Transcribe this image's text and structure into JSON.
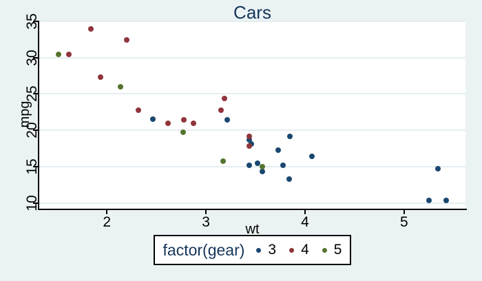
{
  "chart": {
    "title": "Cars",
    "xlabel": "wt",
    "ylabel": "mpg",
    "legend_title": "factor(gear)"
  },
  "colors": {
    "background": "#eaf2f3",
    "panel": "#ffffff",
    "grid": "#e4edf1",
    "axis": "#000000",
    "title_text": "#16365c",
    "gear3": "#1a476f",
    "gear4": "#90353b",
    "gear5": "#55752f"
  },
  "chart_data": {
    "type": "scatter",
    "title": "Cars",
    "xlabel": "wt",
    "ylabel": "mpg",
    "xlim": [
      1.317,
      5.62
    ],
    "ylim": [
      9.225,
      35.08
    ],
    "xticks": [
      2,
      3,
      4,
      5
    ],
    "yticks": [
      10,
      15,
      20,
      25,
      30,
      35
    ],
    "grid": "horizontal-only",
    "legend": {
      "title": "factor(gear)",
      "position": "bottom",
      "entries": [
        "3",
        "4",
        "5"
      ]
    },
    "series": [
      {
        "name": "3",
        "color": "#1a476f",
        "points": [
          [
            2.465,
            21.5
          ],
          [
            3.215,
            21.4
          ],
          [
            3.435,
            15.2
          ],
          [
            3.44,
            18.7
          ],
          [
            3.46,
            18.1
          ],
          [
            3.52,
            15.5
          ],
          [
            3.57,
            14.3
          ],
          [
            3.73,
            17.3
          ],
          [
            3.78,
            15.2
          ],
          [
            3.84,
            13.3
          ],
          [
            3.845,
            19.2
          ],
          [
            4.07,
            16.4
          ],
          [
            5.25,
            10.4
          ],
          [
            5.345,
            14.7
          ],
          [
            5.424,
            10.4
          ]
        ]
      },
      {
        "name": "4",
        "color": "#90353b",
        "points": [
          [
            1.615,
            30.4
          ],
          [
            1.835,
            33.9
          ],
          [
            1.935,
            27.3
          ],
          [
            2.2,
            32.4
          ],
          [
            2.32,
            22.8
          ],
          [
            2.62,
            21.0
          ],
          [
            2.78,
            21.4
          ],
          [
            2.875,
            21.0
          ],
          [
            3.15,
            22.8
          ],
          [
            3.19,
            24.4
          ],
          [
            3.44,
            19.2
          ],
          [
            3.44,
            17.8
          ]
        ]
      },
      {
        "name": "5",
        "color": "#55752f",
        "points": [
          [
            1.513,
            30.4
          ],
          [
            2.14,
            26.0
          ],
          [
            2.77,
            19.7
          ],
          [
            3.17,
            15.8
          ],
          [
            3.57,
            15.0
          ]
        ]
      }
    ]
  }
}
